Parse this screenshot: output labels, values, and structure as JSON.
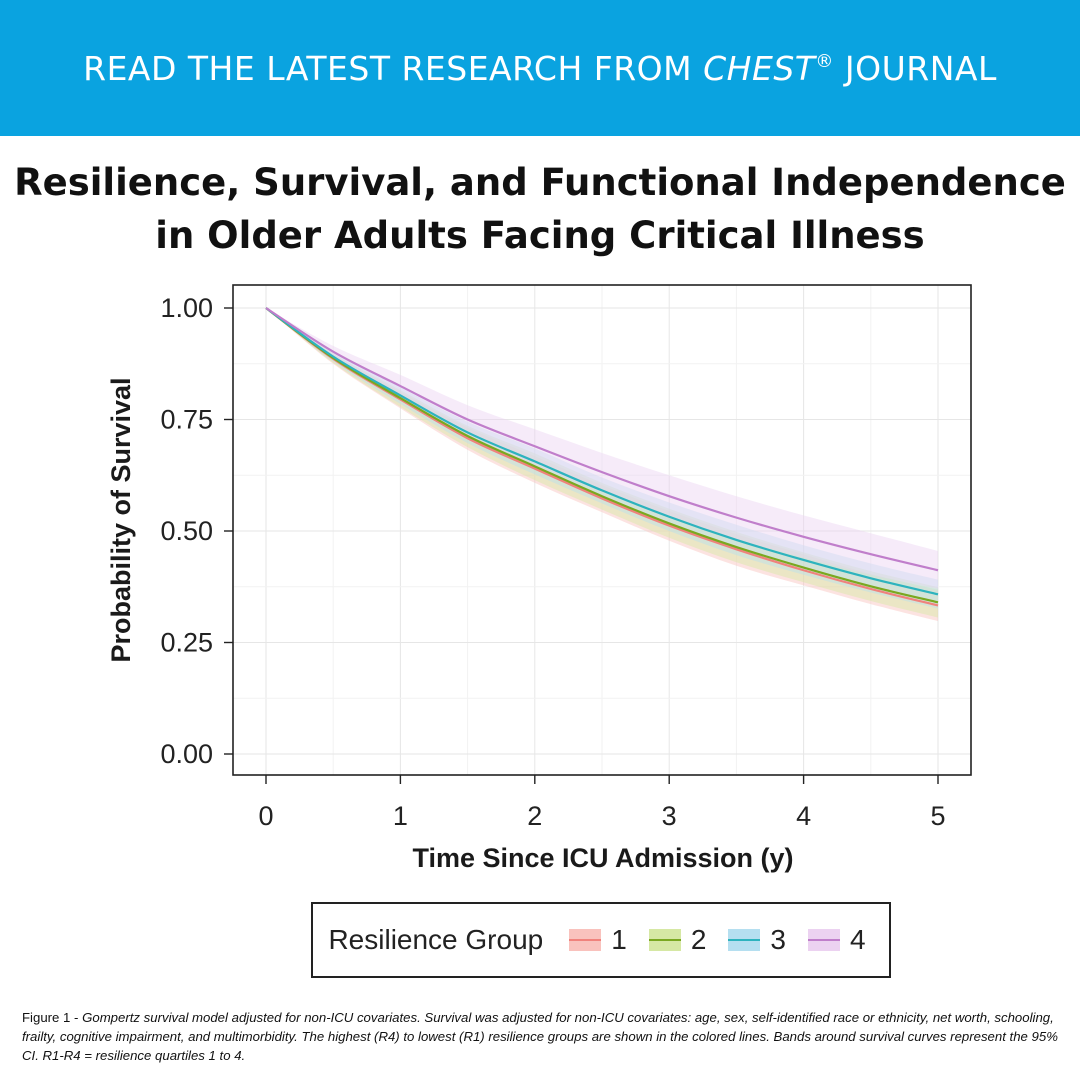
{
  "banner": {
    "pre": "READ THE LATEST RESEARCH FROM ",
    "journal": "CHEST",
    "reg": "®",
    "post": " JOURNAL"
  },
  "title": {
    "line1": "Resilience, Survival, and Functional Independence",
    "line2": "in Older Adults Facing Critical Illness"
  },
  "chart_data": {
    "type": "line",
    "title": "",
    "xlabel": "Time Since ICU Admission (y)",
    "ylabel": "Probability of Survival",
    "xlim": [
      0,
      5
    ],
    "ylim": [
      0,
      1
    ],
    "xticks": [
      "0",
      "1",
      "2",
      "3",
      "4",
      "5"
    ],
    "yticks": [
      "0.00",
      "0.25",
      "0.50",
      "0.75",
      "1.00"
    ],
    "grid": true,
    "x": [
      0,
      0.5,
      1,
      1.5,
      2,
      2.5,
      3,
      3.5,
      4,
      4.5,
      5
    ],
    "series": [
      {
        "name": "1",
        "color": "#f0827c",
        "band": "#f9c2bd",
        "values": [
          1.0,
          0.886,
          0.795,
          0.708,
          0.64,
          0.573,
          0.512,
          0.459,
          0.412,
          0.37,
          0.333
        ],
        "lower": [
          1.0,
          0.875,
          0.775,
          0.682,
          0.608,
          0.542,
          0.478,
          0.422,
          0.378,
          0.336,
          0.298
        ],
        "upper": [
          1.0,
          0.896,
          0.812,
          0.732,
          0.668,
          0.603,
          0.545,
          0.493,
          0.448,
          0.404,
          0.368
        ]
      },
      {
        "name": "2",
        "color": "#7aa820",
        "band": "#d6e8a4",
        "values": [
          1.0,
          0.888,
          0.798,
          0.713,
          0.645,
          0.578,
          0.517,
          0.464,
          0.418,
          0.376,
          0.34
        ],
        "lower": [
          1.0,
          0.877,
          0.778,
          0.688,
          0.614,
          0.548,
          0.485,
          0.43,
          0.385,
          0.343,
          0.306
        ],
        "upper": [
          1.0,
          0.898,
          0.816,
          0.736,
          0.674,
          0.608,
          0.55,
          0.498,
          0.452,
          0.41,
          0.374
        ]
      },
      {
        "name": "3",
        "color": "#2db3be",
        "band": "#b5dff0",
        "values": [
          1.0,
          0.891,
          0.804,
          0.721,
          0.656,
          0.591,
          0.532,
          0.48,
          0.435,
          0.394,
          0.358
        ],
        "lower": [
          1.0,
          0.88,
          0.785,
          0.697,
          0.627,
          0.562,
          0.5,
          0.446,
          0.402,
          0.362,
          0.326
        ],
        "upper": [
          1.0,
          0.901,
          0.822,
          0.745,
          0.685,
          0.62,
          0.564,
          0.514,
          0.468,
          0.427,
          0.391
        ]
      },
      {
        "name": "4",
        "color": "#c07ecb",
        "band": "#ecd2f1",
        "values": [
          1.0,
          0.902,
          0.825,
          0.75,
          0.69,
          0.632,
          0.578,
          0.53,
          0.487,
          0.448,
          0.412
        ],
        "lower": [
          1.0,
          0.888,
          0.8,
          0.718,
          0.65,
          0.588,
          0.53,
          0.482,
          0.44,
          0.402,
          0.37
        ],
        "upper": [
          1.0,
          0.915,
          0.85,
          0.782,
          0.728,
          0.675,
          0.625,
          0.578,
          0.535,
          0.495,
          0.455
        ]
      }
    ]
  },
  "legend": {
    "title": "Resilience Group",
    "items": [
      "1",
      "2",
      "3",
      "4"
    ]
  },
  "caption": {
    "lead": "Figure 1 - ",
    "body": "Gompertz survival model adjusted for non-ICU covariates. Survival was adjusted for non-ICU covariates: age, sex, self-identified race or ethnicity, net worth, schooling, frailty, cognitive impairment, and multimorbidity. The highest (R4) to lowest (R1) resilience groups are shown in the colored lines. Bands around survival curves represent the 95% CI. R1-R4 = resilience quartiles 1 to 4."
  }
}
